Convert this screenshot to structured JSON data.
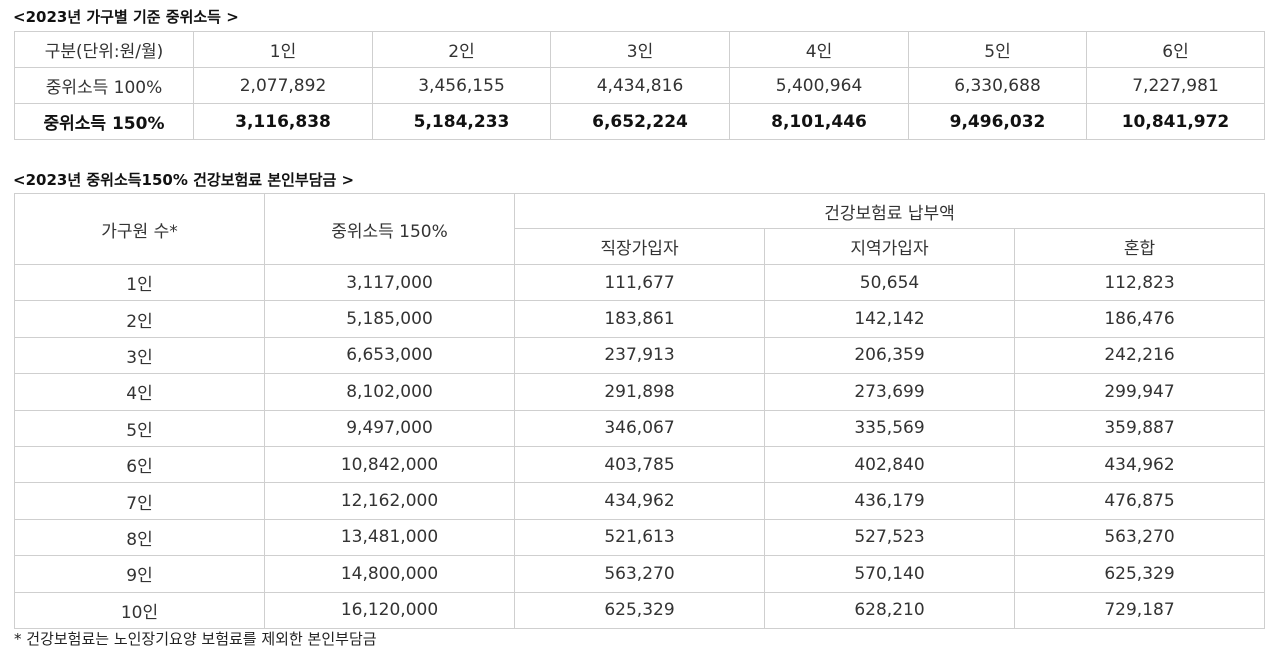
{
  "income_table": {
    "title": "<2023년 가구별 기준 중위소득 >",
    "headers": [
      "구분(단위:원/월)",
      "1인",
      "2인",
      "3인",
      "4인",
      "5인",
      "6인"
    ],
    "rows": [
      {
        "label": "중위소득 100%",
        "values": [
          "2,077,892",
          "3,456,155",
          "4,434,816",
          "5,400,964",
          "6,330,688",
          "7,227,981"
        ]
      },
      {
        "label": "중위소득 150%",
        "values": [
          "3,116,838",
          "5,184,233",
          "6,652,224",
          "8,101,446",
          "9,496,032",
          "10,841,972"
        ]
      }
    ]
  },
  "premium_table": {
    "title": "<2023년 중위소득150% 건강보험료 본인부담금 >",
    "headers": {
      "household": "가구원 수*",
      "income150": "중위소득 150%",
      "premium_group": "건강보험료 납부액",
      "employee": "직장가입자",
      "regional": "지역가입자",
      "mixed": "혼합"
    },
    "rows": [
      [
        "1인",
        "3,117,000",
        "111,677",
        "50,654",
        "112,823"
      ],
      [
        "2인",
        "5,185,000",
        "183,861",
        "142,142",
        "186,476"
      ],
      [
        "3인",
        "6,653,000",
        "237,913",
        "206,359",
        "242,216"
      ],
      [
        "4인",
        "8,102,000",
        "291,898",
        "273,699",
        "299,947"
      ],
      [
        "5인",
        "9,497,000",
        "346,067",
        "335,569",
        "359,887"
      ],
      [
        "6인",
        "10,842,000",
        "403,785",
        "402,840",
        "434,962"
      ],
      [
        "7인",
        "12,162,000",
        "434,962",
        "436,179",
        "476,875"
      ],
      [
        "8인",
        "13,481,000",
        "521,613",
        "527,523",
        "563,270"
      ],
      [
        "9인",
        "14,800,000",
        "563,270",
        "570,140",
        "625,329"
      ],
      [
        "10인",
        "16,120,000",
        "625,329",
        "628,210",
        "729,187"
      ]
    ]
  },
  "footnote": "* 건강보험료는 노인장기요양 보험료를 제외한 본인부담금"
}
